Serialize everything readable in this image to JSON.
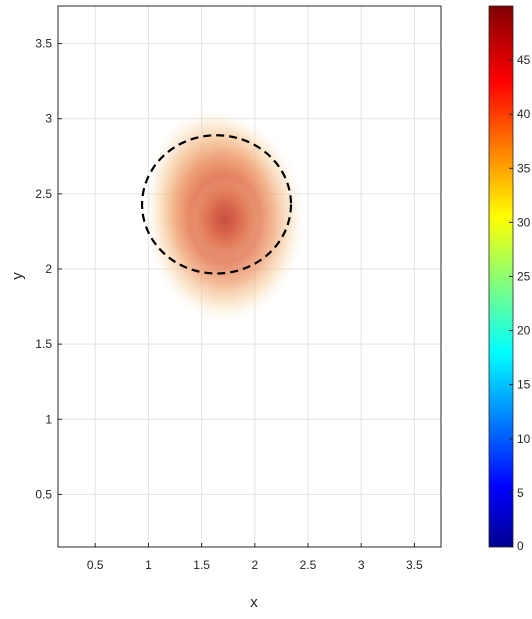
{
  "chart_data": {
    "type": "heatmap",
    "title": "",
    "xlabel": "x",
    "ylabel": "y",
    "xlim": [
      0.15,
      3.75
    ],
    "ylim": [
      0.15,
      3.75
    ],
    "x_ticks": [
      "0.5",
      "1",
      "1.5",
      "2",
      "2.5",
      "3",
      "3.5"
    ],
    "y_ticks": [
      "0.5",
      "1",
      "1.5",
      "2",
      "2.5",
      "3",
      "3.5"
    ],
    "grid": true,
    "colormap": "jet",
    "colorbar": {
      "range": [
        0,
        50
      ],
      "ticks": [
        "0",
        "5",
        "10",
        "15",
        "20",
        "25",
        "30",
        "35",
        "40",
        "45"
      ]
    },
    "density": {
      "center": [
        1.72,
        2.33
      ],
      "peak_value": 43,
      "extent_x": [
        0.92,
        2.42
      ],
      "extent_y": [
        1.7,
        3.08
      ]
    },
    "circle": {
      "center": [
        1.64,
        2.43
      ],
      "radius_x": 0.7,
      "radius_y": 0.46,
      "style": "dashed",
      "color": "#000000"
    }
  }
}
